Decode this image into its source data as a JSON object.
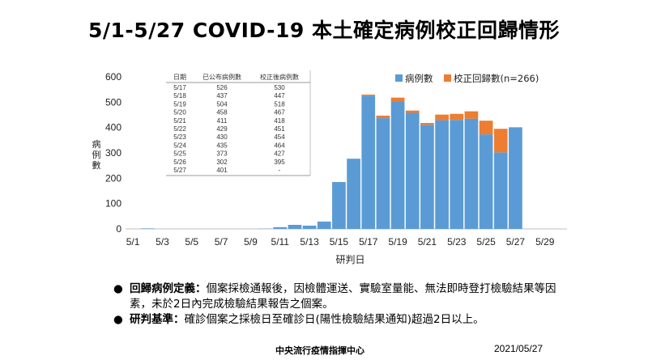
{
  "page": {
    "title": "5/1-5/27 COVID-19 本土確定病例校正回歸情形",
    "footer_org": "中央流行疫情指揮中心",
    "footer_date": "2021/05/27"
  },
  "notes": [
    {
      "bullet": "●",
      "key": "回歸病例定義：",
      "text": "個案採檢通報後，因檢體運送、實驗室量能、無法即時登打檢驗結果等因素，未於2日內完成檢驗結果報告之個案。"
    },
    {
      "bullet": "●",
      "key": "研判基準：",
      "text": "確診個案之採檢日至確診日(陽性檢驗結果通知)超過2日以上。"
    }
  ],
  "chart_data": {
    "type": "bar",
    "stacked": true,
    "xlabel": "研判日",
    "ylabel": "病例數",
    "ylim": [
      0,
      600
    ],
    "yticks": [
      0,
      100,
      200,
      300,
      400,
      500,
      600
    ],
    "xtick_labels": [
      "5/1",
      "5/3",
      "5/5",
      "5/7",
      "5/9",
      "5/11",
      "5/13",
      "5/15",
      "5/17",
      "5/19",
      "5/21",
      "5/23",
      "5/25",
      "5/27",
      "5/29"
    ],
    "categories": [
      "5/1",
      "5/2",
      "5/3",
      "5/4",
      "5/5",
      "5/6",
      "5/7",
      "5/8",
      "5/9",
      "5/10",
      "5/11",
      "5/12",
      "5/13",
      "5/14",
      "5/15",
      "5/16",
      "5/17",
      "5/18",
      "5/19",
      "5/20",
      "5/21",
      "5/22",
      "5/23",
      "5/24",
      "5/25",
      "5/26",
      "5/27",
      "5/28",
      "5/29",
      "5/30"
    ],
    "series": [
      {
        "name": "病例數",
        "color": "#5B9BD5",
        "values": [
          0,
          2,
          0,
          0,
          0,
          0,
          0,
          0,
          0,
          1,
          7,
          16,
          13,
          29,
          185,
          277,
          526,
          437,
          504,
          458,
          411,
          429,
          430,
          435,
          373,
          302,
          401,
          0,
          0,
          0
        ]
      },
      {
        "name": "校正回歸數(n=266)",
        "color": "#ED7D31",
        "values": [
          0,
          0,
          0,
          0,
          0,
          0,
          0,
          0,
          0,
          0,
          0,
          0,
          0,
          0,
          0,
          0,
          4,
          10,
          14,
          9,
          7,
          22,
          24,
          29,
          54,
          93,
          0,
          0,
          0,
          0
        ]
      }
    ],
    "legend": {
      "position": "top-right"
    },
    "grid": false,
    "inset_table": {
      "headers": [
        "日期",
        "已公布病例數",
        "校正後病例數"
      ],
      "rows": [
        [
          "5/17",
          "526",
          "530"
        ],
        [
          "5/18",
          "437",
          "447"
        ],
        [
          "5/19",
          "504",
          "518"
        ],
        [
          "5/20",
          "458",
          "467"
        ],
        [
          "5/21",
          "411",
          "418"
        ],
        [
          "5/22",
          "429",
          "451"
        ],
        [
          "5/23",
          "430",
          "454"
        ],
        [
          "5/24",
          "435",
          "464"
        ],
        [
          "5/25",
          "373",
          "427"
        ],
        [
          "5/26",
          "302",
          "395"
        ],
        [
          "5/27",
          "401",
          "-"
        ]
      ]
    }
  }
}
